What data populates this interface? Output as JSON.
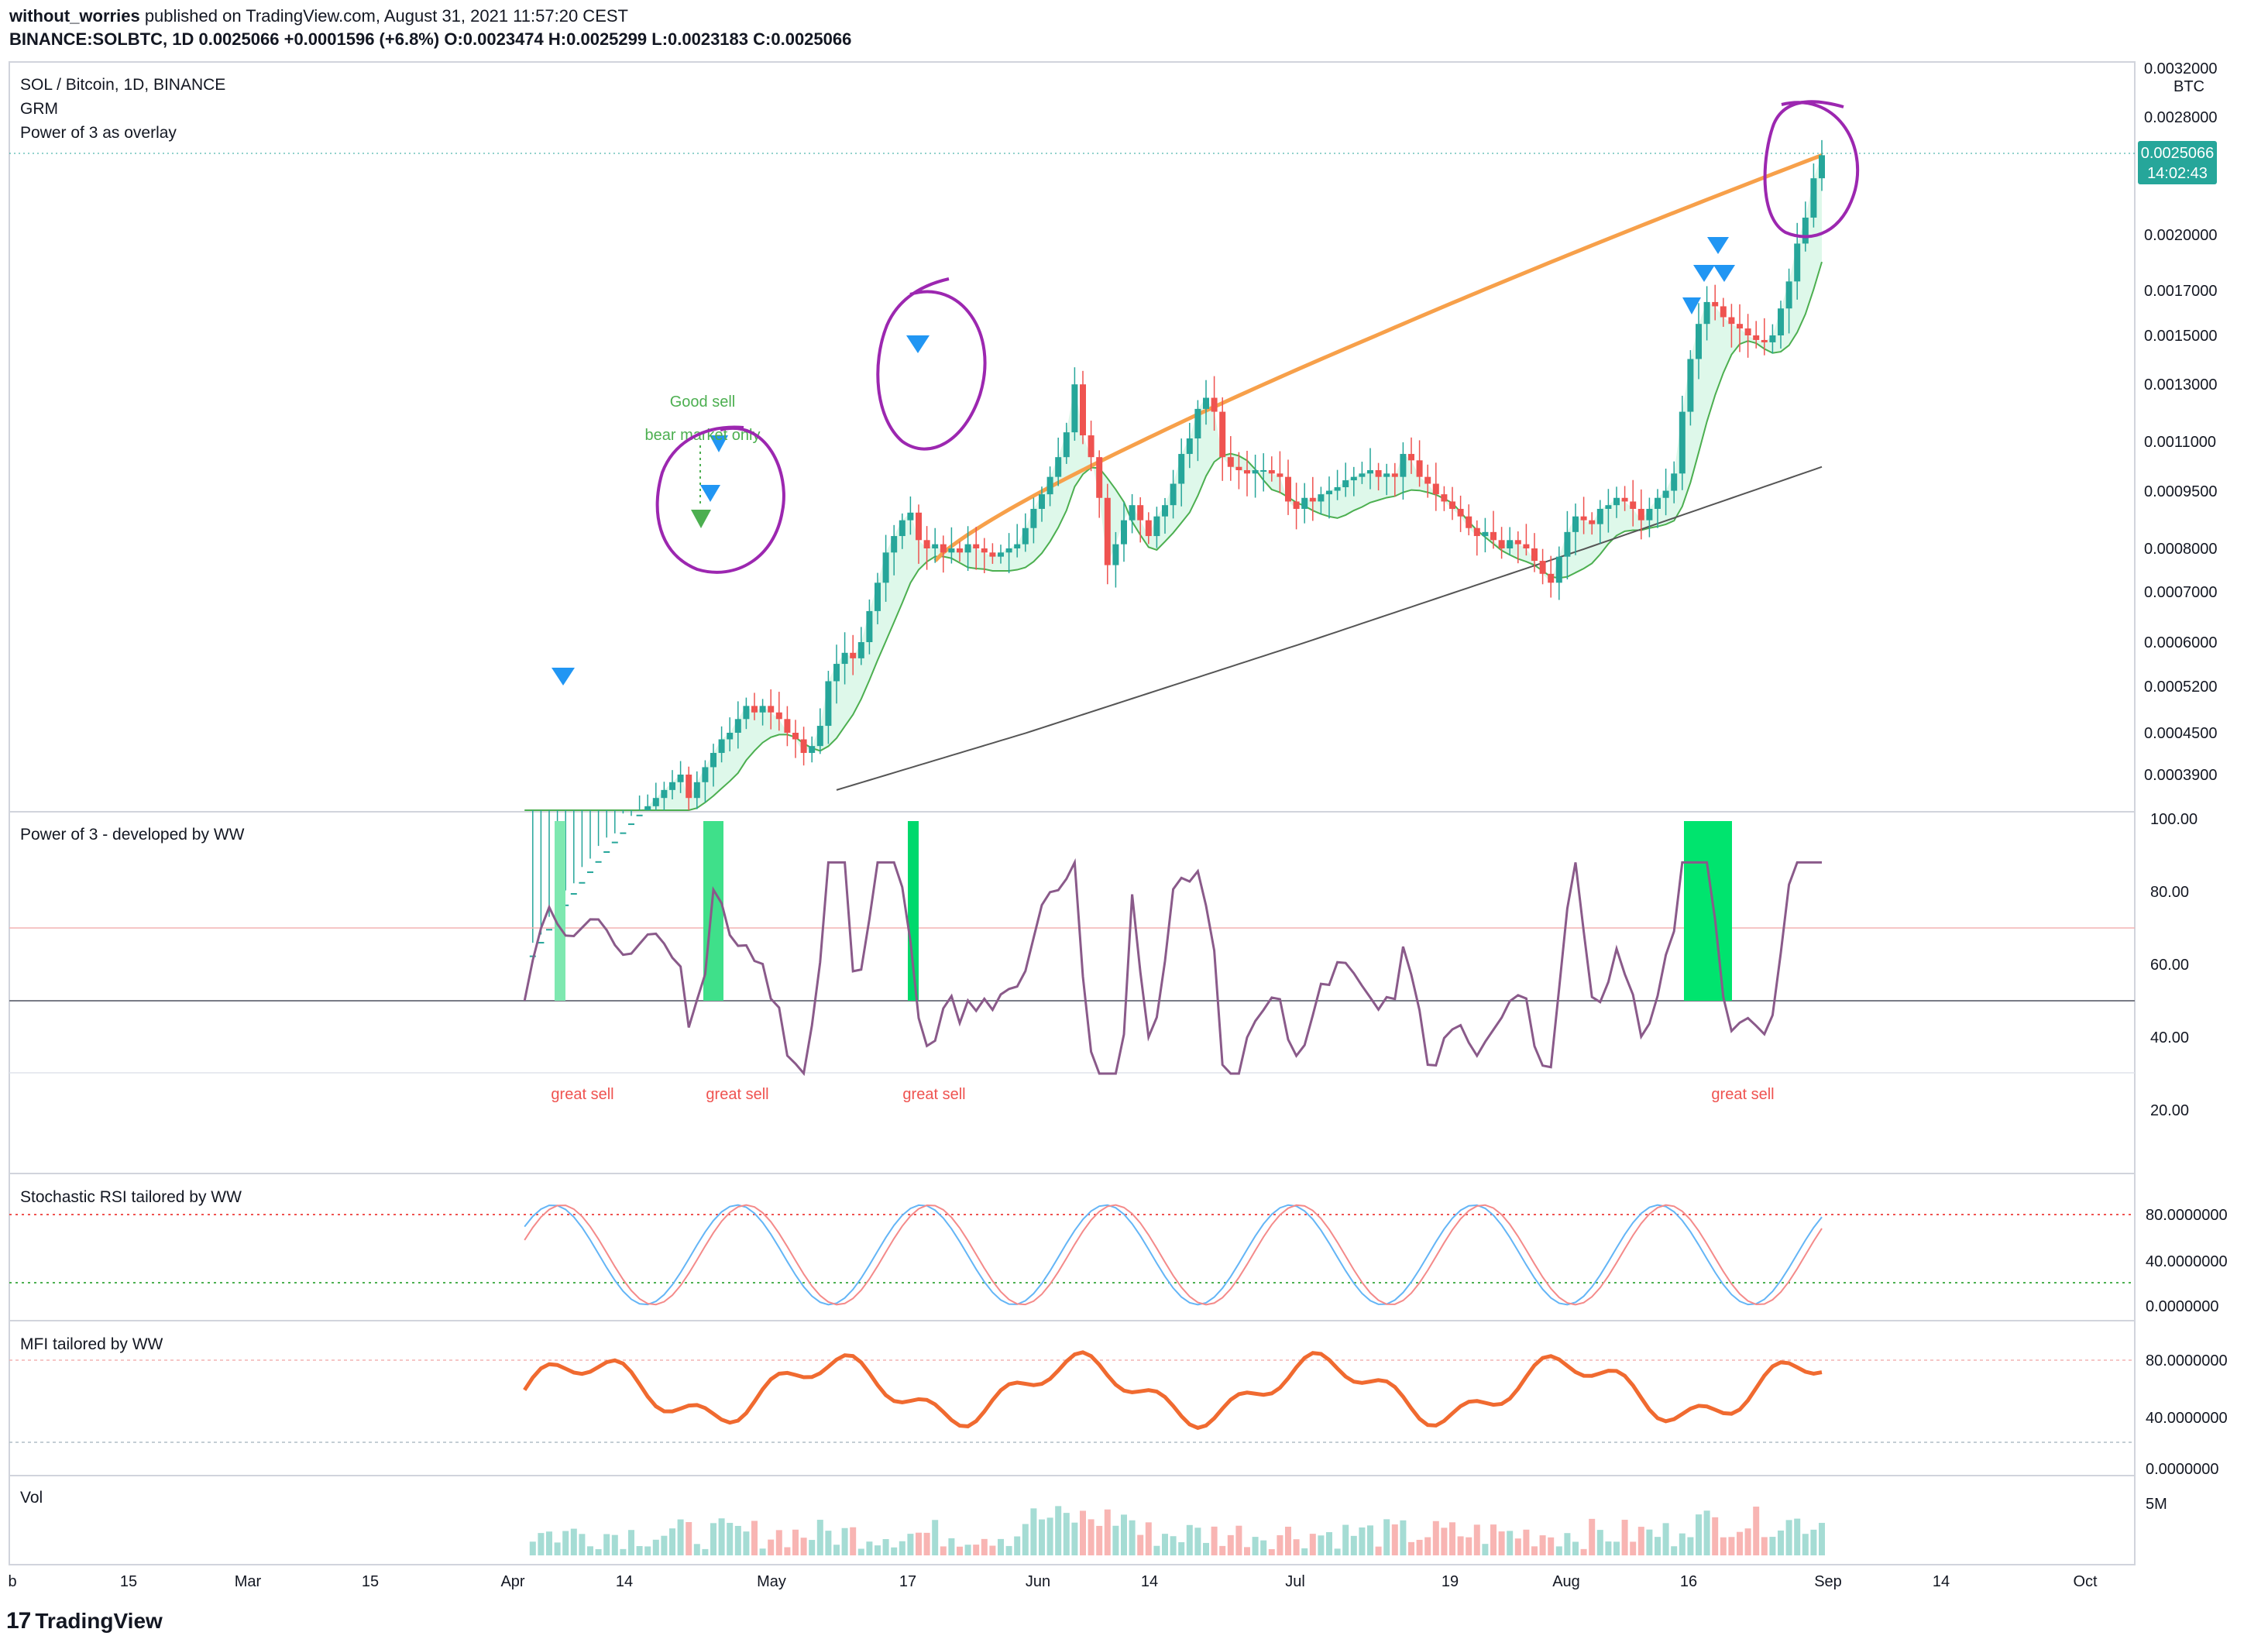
{
  "header": {
    "author": "without_worries",
    "published": "published on TradingView.com, August 31, 2021 11:57:20 CEST"
  },
  "ohlc": {
    "symbol": "BINANCE:SOLBTC, 1D",
    "last": "0.0025066",
    "change": "+0.0001596 (+6.8%)",
    "o_label": "O:",
    "o": "0.0023474",
    "h_label": "H:",
    "h": "0.0025299",
    "l_label": "L:",
    "l": "0.0023183",
    "c_label": "C:",
    "c": "0.0025066"
  },
  "main_pane": {
    "legend": [
      "SOL / Bitcoin, 1D, BINANCE",
      "GRM",
      "Power of 3 as overlay"
    ],
    "currency": "BTC",
    "price_ticks": [
      "0.0032000",
      "0.0028000",
      "0.0020000",
      "0.0017000",
      "0.0015000",
      "0.0013000",
      "0.0011000",
      "0.0009500",
      "0.0008000",
      "0.0007000",
      "0.0006000",
      "0.0005200",
      "0.0004500",
      "0.0003900"
    ],
    "last_price": "0.0025066",
    "countdown": "14:02:43",
    "annotations": {
      "good_sell": "Good sell",
      "bear_market": "bear market only"
    }
  },
  "power_pane": {
    "legend": "Power of 3 - developed by WW",
    "ticks": [
      "100.00",
      "80.00",
      "60.00",
      "40.00",
      "20.00"
    ],
    "great_sell": [
      "great sell",
      "great sell",
      "great sell",
      "great sell"
    ]
  },
  "stoch_pane": {
    "legend": "Stochastic RSI tailored by WW",
    "ticks": [
      "80.0000000",
      "40.0000000",
      "0.0000000"
    ]
  },
  "mfi_pane": {
    "legend": "MFI tailored by WW",
    "ticks": [
      "80.0000000",
      "40.0000000",
      "0.0000000"
    ]
  },
  "vol_pane": {
    "legend": "Vol",
    "ticks": [
      "5M"
    ]
  },
  "time_axis": [
    "b",
    "15",
    "Mar",
    "15",
    "Apr",
    "14",
    "May",
    "17",
    "Jun",
    "14",
    "Jul",
    "19",
    "Aug",
    "16",
    "Sep",
    "14",
    "Oct"
  ],
  "footer": {
    "brand": "TradingView"
  },
  "colors": {
    "up": "#26a69a",
    "down": "#ef5350",
    "ema": "#f7a04a",
    "purple": "#9c27b0",
    "blue": "#2196f3",
    "green": "#4caf50",
    "price_badge": "#26a69a"
  },
  "chart_data": {
    "type": "candlestick",
    "close": [
      0.0002,
      0.00021,
      0.00022,
      0.00023,
      0.00024,
      0.00025,
      0.00026,
      0.00027,
      0.00028,
      0.00029,
      0.0003,
      0.00031,
      0.00032,
      0.00033,
      0.00034,
      0.00035,
      0.00036,
      0.00037,
      0.00038,
      0.00039,
      0.00036,
      0.00038,
      0.0004,
      0.00042,
      0.00044,
      0.00045,
      0.00047,
      0.00049,
      0.00048,
      0.00049,
      0.00048,
      0.00047,
      0.00045,
      0.00044,
      0.00042,
      0.00043,
      0.00046,
      0.00053,
      0.00056,
      0.00058,
      0.00057,
      0.0006,
      0.00066,
      0.00072,
      0.00079,
      0.00083,
      0.00087,
      0.00089,
      0.00082,
      0.0008,
      0.00081,
      0.00079,
      0.0008,
      0.00079,
      0.00081,
      0.0008,
      0.00079,
      0.00078,
      0.00079,
      0.0008,
      0.00081,
      0.00085,
      0.0009,
      0.00094,
      0.00099,
      0.00105,
      0.00113,
      0.0013,
      0.00112,
      0.00105,
      0.00093,
      0.00076,
      0.00081,
      0.00087,
      0.00091,
      0.00087,
      0.00083,
      0.00088,
      0.00091,
      0.00097,
      0.00106,
      0.00111,
      0.00121,
      0.00125,
      0.0012,
      0.00105,
      0.00102,
      0.00101,
      0.001,
      0.00101,
      0.00101,
      0.001,
      0.00099,
      0.00092,
      0.0009,
      0.00093,
      0.00092,
      0.00094,
      0.00095,
      0.00096,
      0.00098,
      0.00099,
      0.001,
      0.00101,
      0.00099,
      0.001,
      0.00099,
      0.00106,
      0.00104,
      0.00099,
      0.00097,
      0.00094,
      0.00092,
      0.0009,
      0.00088,
      0.00085,
      0.00083,
      0.00084,
      0.00082,
      0.0008,
      0.00082,
      0.00081,
      0.0008,
      0.00077,
      0.00074,
      0.00072,
      0.00078,
      0.00084,
      0.00088,
      0.00087,
      0.00086,
      0.0009,
      0.00091,
      0.00093,
      0.00092,
      0.0009,
      0.00087,
      0.0009,
      0.00093,
      0.00095,
      0.001,
      0.0012,
      0.0014,
      0.00155,
      0.00165,
      0.00163,
      0.00158,
      0.00155,
      0.00153,
      0.0015,
      0.00148,
      0.00147,
      0.0015,
      0.00162,
      0.00175,
      0.00195,
      0.0021,
      0.00235,
      0.00251
    ],
    "ema200": "rising orange line from 0.00077 (late Mar) to 0.00251 (end Aug)",
    "last": 0.0025066
  }
}
